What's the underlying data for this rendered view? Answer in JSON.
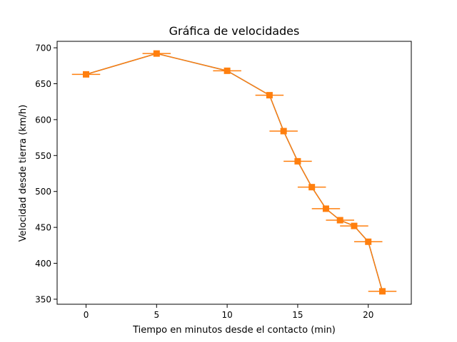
{
  "chart_data": {
    "type": "line",
    "title": "Gráfica de velocidades",
    "xlabel": "Tiempo en minutos desde el contacto (min)",
    "ylabel": "Velocidad desde tierra (km/h)",
    "xlim": [
      -2.05,
      23.05
    ],
    "ylim": [
      343,
      709
    ],
    "xticks": [
      0,
      5,
      10,
      15,
      20
    ],
    "yticks": [
      350,
      400,
      450,
      500,
      550,
      600,
      650,
      700
    ],
    "grid": false,
    "legend": "none",
    "colors": {
      "series": "#ff7f0e",
      "under": "#1f77b4",
      "axes": "#000000"
    },
    "marker": "square",
    "series": [
      {
        "x": [
          0,
          5,
          10,
          13,
          14,
          15,
          16,
          17,
          18,
          19,
          20,
          21
        ],
        "y": [
          663,
          692,
          668,
          634,
          584,
          542,
          506,
          476,
          460,
          452,
          430,
          361
        ],
        "xerr": 1
      }
    ]
  }
}
